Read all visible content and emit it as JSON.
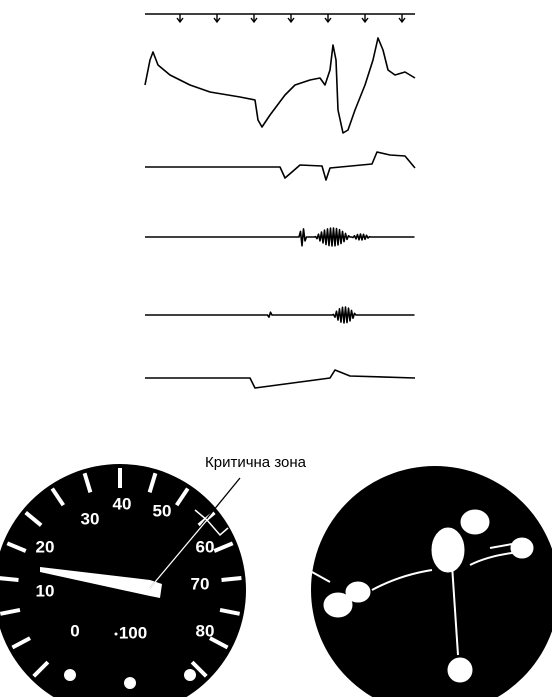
{
  "annotation": "Критична зона",
  "gauge": {
    "labels": [
      "0",
      "10",
      "20",
      "30",
      "40",
      "50",
      "60",
      "70",
      "80",
      "100"
    ]
  }
}
